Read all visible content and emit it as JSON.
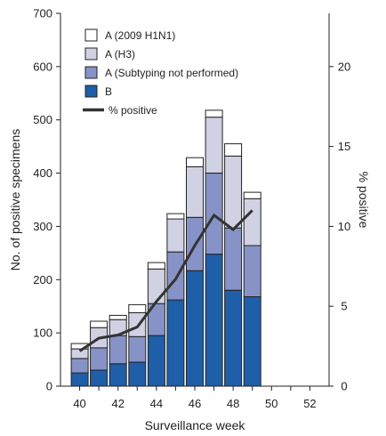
{
  "chart_data": {
    "type": "bar",
    "stacked": true,
    "xlabel": "Surveillance week",
    "ylabel": "No. of positive specimens",
    "y2label": "% positive",
    "x_ticks": [
      40,
      42,
      44,
      46,
      48,
      50,
      52
    ],
    "xlim": [
      39,
      53
    ],
    "ylim": [
      0,
      700
    ],
    "y_ticks": [
      0,
      100,
      200,
      300,
      400,
      500,
      600,
      700
    ],
    "y2lim": [
      0,
      23.33
    ],
    "y2_ticks": [
      0,
      5,
      10,
      15,
      20
    ],
    "grid": false,
    "legend_position": "top-left",
    "weeks": [
      40,
      41,
      42,
      43,
      44,
      45,
      46,
      47,
      48,
      49
    ],
    "series": [
      {
        "name": "B",
        "color": "#1f5ea8",
        "values": [
          25,
          30,
          42,
          45,
          95,
          162,
          217,
          248,
          180,
          168
        ]
      },
      {
        "name": "A (Subtyping not performed)",
        "color": "#8793c6",
        "values": [
          27,
          42,
          53,
          48,
          60,
          90,
          100,
          152,
          117,
          96
        ]
      },
      {
        "name": "A (H3)",
        "color": "#d0d1e3",
        "values": [
          18,
          38,
          30,
          45,
          65,
          62,
          95,
          105,
          135,
          88
        ]
      },
      {
        "name": "A (2009 H1N1)",
        "color": "#ffffff",
        "values": [
          10,
          12,
          8,
          15,
          12,
          10,
          17,
          13,
          23,
          12
        ]
      }
    ],
    "line": {
      "name": "% positive",
      "color": "#333333",
      "values": [
        2.2,
        3.0,
        3.2,
        3.7,
        5.3,
        6.7,
        8.8,
        10.7,
        9.8,
        11.0
      ]
    },
    "legend_order": [
      "A (2009 H1N1)",
      "A (H3)",
      "A (Subtyping not performed)",
      "B",
      "% positive"
    ]
  }
}
